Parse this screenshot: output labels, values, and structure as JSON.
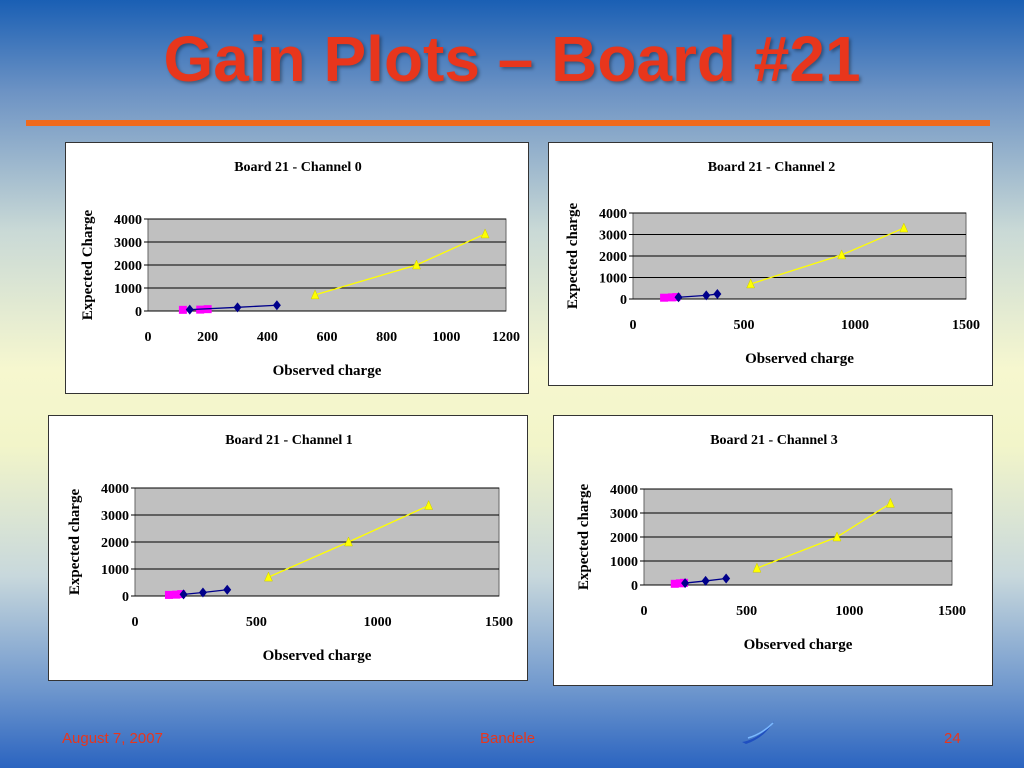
{
  "slide": {
    "title": "Gain Plots – Board #21"
  },
  "footer": {
    "date": "August 7, 2007",
    "author": "Bandele",
    "page": "24"
  },
  "colors": {
    "series_diamond": "#00008b",
    "series_square": "#ff00ff",
    "series_triangle": "#ffff00",
    "plot_bg": "#c0c0c0",
    "title": "#e8361c",
    "rule": "#f06a1c"
  },
  "icons": {
    "logo": "swoosh-logo-icon"
  },
  "chart_data": [
    {
      "type": "scatter",
      "title": "Board 21 - Channel 0",
      "xlabel": "Observed charge",
      "ylabel": "Expected Charge",
      "xlim": [
        0,
        1200
      ],
      "ylim": [
        0,
        4000
      ],
      "xticks": [
        0,
        200,
        400,
        600,
        800,
        1000,
        1200
      ],
      "yticks": [
        0,
        1000,
        2000,
        3000,
        4000
      ],
      "grid": "horizontal",
      "legend": "none",
      "series": [
        {
          "marker": "square",
          "color": "#ff00ff",
          "points": [
            [
              117,
              50
            ],
            [
              175,
              60
            ],
            [
              200,
              80
            ]
          ]
        },
        {
          "marker": "diamond",
          "color": "#00008b",
          "points": [
            [
              140,
              60
            ],
            [
              300,
              160
            ],
            [
              432,
              250
            ]
          ]
        },
        {
          "marker": "triangle",
          "color": "#ffff00",
          "points": [
            [
              560,
              700
            ],
            [
              900,
              2000
            ],
            [
              1130,
              3350
            ]
          ]
        }
      ]
    },
    {
      "type": "scatter",
      "title": "Board 21 - Channel 2",
      "xlabel": "Observed charge",
      "ylabel": "Expected charge",
      "xlim": [
        0,
        1500
      ],
      "ylim": [
        0,
        4000
      ],
      "xticks": [
        0,
        500,
        1000,
        1500
      ],
      "yticks": [
        0,
        1000,
        2000,
        3000,
        4000
      ],
      "grid": "horizontal",
      "legend": "none",
      "series": [
        {
          "marker": "square",
          "color": "#ff00ff",
          "points": [
            [
              140,
              60
            ],
            [
              175,
              75
            ],
            [
              195,
              90
            ]
          ]
        },
        {
          "marker": "diamond",
          "color": "#00008b",
          "points": [
            [
              205,
              80
            ],
            [
              330,
              170
            ],
            [
              380,
              230
            ]
          ]
        },
        {
          "marker": "triangle",
          "color": "#ffff00",
          "points": [
            [
              530,
              700
            ],
            [
              940,
              2050
            ],
            [
              1220,
              3300
            ]
          ]
        }
      ]
    },
    {
      "type": "scatter",
      "title": "Board 21 - Channel 1",
      "xlabel": "Observed charge",
      "ylabel": "Expected charge",
      "xlim": [
        0,
        1500
      ],
      "ylim": [
        0,
        4000
      ],
      "xticks": [
        0,
        500,
        1000,
        1500
      ],
      "yticks": [
        0,
        1000,
        2000,
        3000,
        4000
      ],
      "grid": "horizontal",
      "legend": "none",
      "series": [
        {
          "marker": "square",
          "color": "#ff00ff",
          "points": [
            [
              140,
              40
            ],
            [
              170,
              50
            ],
            [
              190,
              70
            ]
          ]
        },
        {
          "marker": "diamond",
          "color": "#00008b",
          "points": [
            [
              200,
              60
            ],
            [
              280,
              130
            ],
            [
              380,
              230
            ]
          ]
        },
        {
          "marker": "triangle",
          "color": "#ffff00",
          "points": [
            [
              550,
              700
            ],
            [
              880,
              2000
            ],
            [
              1210,
              3350
            ]
          ]
        }
      ]
    },
    {
      "type": "scatter",
      "title": "Board 21 - Channel 3",
      "xlabel": "Observed charge",
      "ylabel": "Expected charge",
      "xlim": [
        0,
        1500
      ],
      "ylim": [
        0,
        4000
      ],
      "xticks": [
        0,
        500,
        1000,
        1500
      ],
      "yticks": [
        0,
        1000,
        2000,
        3000,
        4000
      ],
      "grid": "horizontal",
      "legend": "none",
      "series": [
        {
          "marker": "square",
          "color": "#ff00ff",
          "points": [
            [
              150,
              50
            ],
            [
              175,
              70
            ],
            [
              195,
              90
            ]
          ]
        },
        {
          "marker": "diamond",
          "color": "#00008b",
          "points": [
            [
              200,
              80
            ],
            [
              300,
              170
            ],
            [
              400,
              270
            ]
          ]
        },
        {
          "marker": "triangle",
          "color": "#ffff00",
          "points": [
            [
              550,
              700
            ],
            [
              940,
              2000
            ],
            [
              1200,
              3400
            ]
          ]
        }
      ]
    }
  ]
}
